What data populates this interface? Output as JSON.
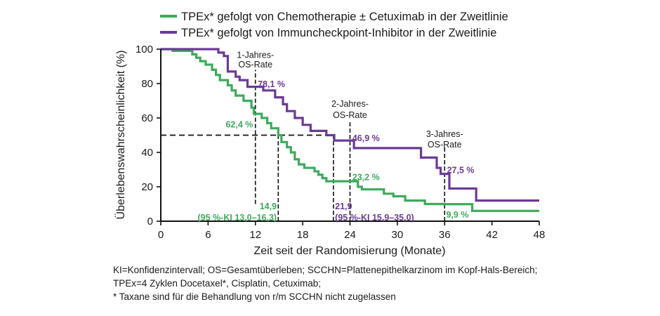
{
  "chart_data": {
    "type": "line",
    "step": true,
    "xlabel": "Zeit seit der Randomisierung (Monate)",
    "ylabel": "Überlebenswahrscheinlichkeit (%)",
    "xlim": [
      0,
      48
    ],
    "ylim": [
      0,
      100
    ],
    "xticks": [
      "0",
      "6",
      "12",
      "18",
      "24",
      "30",
      "36",
      "42",
      "48"
    ],
    "yticks": [
      "0",
      "20",
      "40",
      "60",
      "80",
      "100"
    ],
    "grid": false,
    "legend_placement": "top",
    "series": [
      {
        "name": "TPEx* gefolgt von Chemotherapie ± Cetuximab in der Zweitlinie",
        "color": "#3daa5c",
        "points": [
          [
            0,
            100
          ],
          [
            1.5,
            99
          ],
          [
            4,
            97
          ],
          [
            4.5,
            95
          ],
          [
            5,
            93
          ],
          [
            5.7,
            91
          ],
          [
            6.5,
            88
          ],
          [
            7,
            85
          ],
          [
            7.5,
            82
          ],
          [
            8.5,
            79
          ],
          [
            9,
            76
          ],
          [
            9.5,
            73
          ],
          [
            10.5,
            70
          ],
          [
            11.5,
            66
          ],
          [
            11.8,
            62.4
          ],
          [
            12.8,
            60
          ],
          [
            13.5,
            57
          ],
          [
            14,
            54
          ],
          [
            14.9,
            50
          ],
          [
            15.3,
            46
          ],
          [
            16,
            43
          ],
          [
            16.5,
            40
          ],
          [
            17,
            36
          ],
          [
            17.5,
            33
          ],
          [
            18.2,
            31
          ],
          [
            19.5,
            29
          ],
          [
            20,
            27
          ],
          [
            20.5,
            25
          ],
          [
            21,
            23.2
          ],
          [
            25,
            20
          ],
          [
            25.5,
            18.5
          ],
          [
            28.3,
            16
          ],
          [
            29.5,
            14.5
          ],
          [
            31,
            12
          ],
          [
            33.5,
            10
          ],
          [
            36,
            9.9
          ],
          [
            39.5,
            6
          ],
          [
            48,
            6
          ]
        ]
      },
      {
        "name": "TPEx* gefolgt von Immuncheckpoint-Inhibitor in der Zweitlinie",
        "color": "#6b3a96",
        "points": [
          [
            0,
            100
          ],
          [
            7.3,
            98
          ],
          [
            8,
            96
          ],
          [
            8.5,
            87
          ],
          [
            9.5,
            84
          ],
          [
            10,
            82
          ],
          [
            11,
            78.1
          ],
          [
            13,
            76
          ],
          [
            14.5,
            72
          ],
          [
            15.5,
            68
          ],
          [
            16,
            64
          ],
          [
            17,
            60
          ],
          [
            18,
            56
          ],
          [
            19,
            52.5
          ],
          [
            21,
            50
          ],
          [
            22,
            46.9
          ],
          [
            24.5,
            42.5
          ],
          [
            33,
            37
          ],
          [
            35,
            31
          ],
          [
            35.5,
            27.5
          ],
          [
            36.6,
            19
          ],
          [
            40,
            12
          ],
          [
            48,
            12
          ]
        ]
      }
    ],
    "reference_lines": [
      {
        "type": "h",
        "y": 50,
        "x_from": 0,
        "x_to": 21.9
      },
      {
        "type": "v",
        "x": 12,
        "y_from": 10,
        "y_to": 88
      },
      {
        "type": "v",
        "x": 14.9,
        "y_from": 0,
        "y_to": 50
      },
      {
        "type": "v",
        "x": 21.9,
        "y_from": 0,
        "y_to": 50
      },
      {
        "type": "v",
        "x": 24,
        "y_from": 0,
        "y_to": 58
      },
      {
        "type": "v",
        "x": 36,
        "y_from": 0,
        "y_to": 43
      }
    ],
    "annotations": [
      {
        "text": "1-Jahres-",
        "x": 12,
        "y": 97,
        "color": "#1a1a1a",
        "anchor": "middle"
      },
      {
        "text": "OS-Rate",
        "x": 12,
        "y": 91.5,
        "color": "#1a1a1a",
        "anchor": "middle"
      },
      {
        "text": "78,1 %",
        "x": 12.3,
        "y": 80,
        "color": "#6b3a96",
        "anchor": "start"
      },
      {
        "text": "62,4 %",
        "x": 11.7,
        "y": 56.5,
        "color": "#3daa5c",
        "anchor": "end"
      },
      {
        "text": "2-Jahres-",
        "x": 24,
        "y": 68.5,
        "color": "#1a1a1a",
        "anchor": "middle"
      },
      {
        "text": "OS-Rate",
        "x": 24,
        "y": 62,
        "color": "#1a1a1a",
        "anchor": "middle"
      },
      {
        "text": "46,9 %",
        "x": 24.3,
        "y": 48.5,
        "color": "#6b3a96",
        "anchor": "start"
      },
      {
        "text": "3-Jahres-",
        "x": 36,
        "y": 51,
        "color": "#1a1a1a",
        "anchor": "middle"
      },
      {
        "text": "OS-Rate",
        "x": 36,
        "y": 45,
        "color": "#1a1a1a",
        "anchor": "middle"
      },
      {
        "text": "27,5 %",
        "x": 36.3,
        "y": 30,
        "color": "#6b3a96",
        "anchor": "start"
      },
      {
        "text": "23,2 %",
        "x": 24.3,
        "y": 26,
        "color": "#3daa5c",
        "anchor": "start"
      },
      {
        "text": "9,9 %",
        "x": 36.2,
        "y": 4,
        "color": "#3daa5c",
        "anchor": "start"
      },
      {
        "text": "14,9",
        "x": 14.7,
        "y": 9,
        "color": "#3daa5c",
        "anchor": "end"
      },
      {
        "text": "(95 %-KI 13,0–16,3)",
        "x": 14.7,
        "y": 2.5,
        "color": "#3daa5c",
        "anchor": "end"
      },
      {
        "text": "21,9",
        "x": 22.1,
        "y": 9,
        "color": "#6b3a96",
        "anchor": "start"
      },
      {
        "text": "(95 %-KI 15,9–35,0)",
        "x": 22.1,
        "y": 2.5,
        "color": "#6b3a96",
        "anchor": "start"
      }
    ]
  },
  "footnotes": [
    "KI=Konfidenzintervall; OS=Gesamtüberleben; SCCHN=Plattenepithelkarzinom im Kopf-Hals-Bereich;",
    "TPEx=4 Zyklen Docetaxel*, Cisplatin, Cetuximab;",
    "* Taxane sind für die Behandlung von r/m SCCHN nicht zugelassen"
  ]
}
